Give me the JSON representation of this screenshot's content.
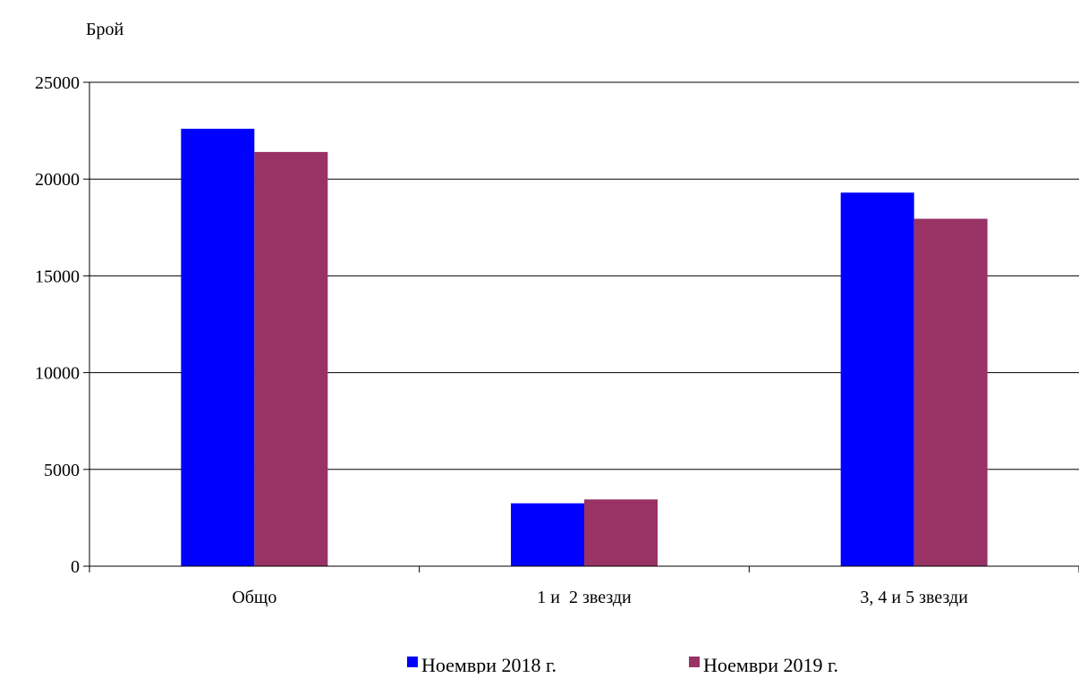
{
  "chart_data": {
    "type": "bar",
    "title": "",
    "ylabel": "Брой",
    "xlabel": "",
    "categories": [
      "Общо",
      "1 и  2 звезди",
      "3, 4 и 5 звезди"
    ],
    "series": [
      {
        "name": "Ноември 2018 г.",
        "color": "#0000FF",
        "values": [
          22600,
          3250,
          19300
        ]
      },
      {
        "name": "Ноември 2019 г.",
        "color": "#993366",
        "values": [
          21400,
          3450,
          17950
        ]
      }
    ],
    "ylim": [
      0,
      25000
    ],
    "yticks": [
      0,
      5000,
      10000,
      15000,
      20000,
      25000
    ],
    "grid": true,
    "legend_position": "bottom"
  }
}
